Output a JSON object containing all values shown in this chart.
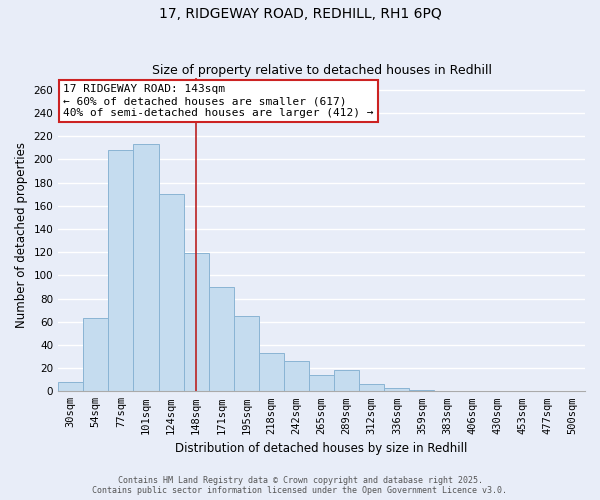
{
  "title": "17, RIDGEWAY ROAD, REDHILL, RH1 6PQ",
  "subtitle": "Size of property relative to detached houses in Redhill",
  "xlabel": "Distribution of detached houses by size in Redhill",
  "ylabel": "Number of detached properties",
  "categories": [
    "30sqm",
    "54sqm",
    "77sqm",
    "101sqm",
    "124sqm",
    "148sqm",
    "171sqm",
    "195sqm",
    "218sqm",
    "242sqm",
    "265sqm",
    "289sqm",
    "312sqm",
    "336sqm",
    "359sqm",
    "383sqm",
    "406sqm",
    "430sqm",
    "453sqm",
    "477sqm",
    "500sqm"
  ],
  "values": [
    8,
    63,
    208,
    213,
    170,
    119,
    90,
    65,
    33,
    26,
    14,
    18,
    6,
    3,
    1,
    0,
    0,
    0,
    0,
    0,
    0
  ],
  "bar_color": "#c5dcef",
  "bar_edge_color": "#8ab4d4",
  "background_color": "#e8edf8",
  "grid_color": "#ffffff",
  "ylim": [
    0,
    270
  ],
  "yticks": [
    0,
    20,
    40,
    60,
    80,
    100,
    120,
    140,
    160,
    180,
    200,
    220,
    240,
    260
  ],
  "vline_color": "#bb2222",
  "annotation_title": "17 RIDGEWAY ROAD: 143sqm",
  "annotation_line1": "← 60% of detached houses are smaller (617)",
  "annotation_line2": "40% of semi-detached houses are larger (412) →",
  "annotation_box_color": "#ffffff",
  "annotation_box_edge": "#cc2222",
  "footer_line1": "Contains HM Land Registry data © Crown copyright and database right 2025.",
  "footer_line2": "Contains public sector information licensed under the Open Government Licence v3.0.",
  "title_fontsize": 10,
  "subtitle_fontsize": 9,
  "axis_label_fontsize": 8.5,
  "tick_fontsize": 7.5,
  "annotation_fontsize": 8,
  "footer_fontsize": 6
}
